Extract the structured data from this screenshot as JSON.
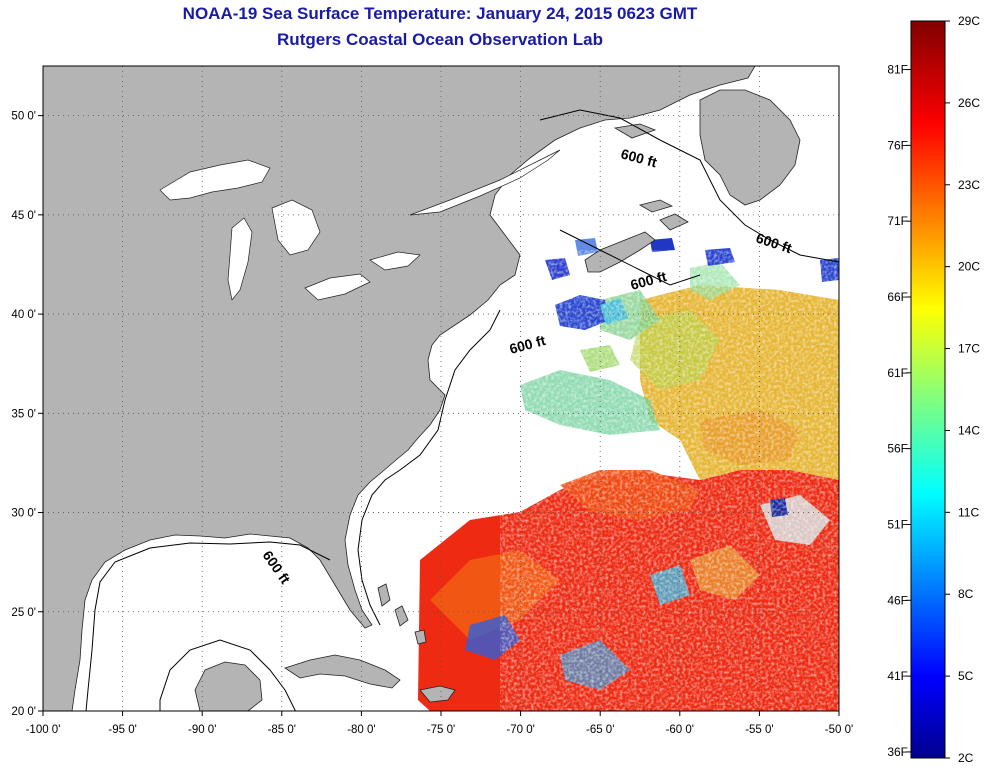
{
  "title": "NOAA-19 Sea Surface Temperature:  January 24, 2015 0623 GMT",
  "subtitle": "Rutgers Coastal Ocean Observation Lab",
  "contour_label": "600 ft",
  "colors": {
    "land": "#b4b4b4",
    "title": "#1a1aa8",
    "warm": "#ee2a12",
    "cool": "#3bb8e0",
    "mid": "#e6c030"
  },
  "chart_data": {
    "type": "heatmap",
    "xlim": [
      -100,
      -50
    ],
    "ylim": [
      20,
      52.5
    ],
    "x_ticks": [
      {
        "v": -100,
        "label": "-100 0'"
      },
      {
        "v": -95,
        "label": "-95 0'"
      },
      {
        "v": -90,
        "label": "-90 0'"
      },
      {
        "v": -85,
        "label": "-85 0'"
      },
      {
        "v": -80,
        "label": "-80 0'"
      },
      {
        "v": -75,
        "label": "-75 0'"
      },
      {
        "v": -70,
        "label": "-70 0'"
      },
      {
        "v": -65,
        "label": "-65 0'"
      },
      {
        "v": -60,
        "label": "-60 0'"
      },
      {
        "v": -55,
        "label": "-55 0'"
      },
      {
        "v": -50,
        "label": "-50 0'"
      }
    ],
    "y_ticks": [
      {
        "v": 20,
        "label": "20 0'"
      },
      {
        "v": 25,
        "label": "25 0'"
      },
      {
        "v": 30,
        "label": "30 0'"
      },
      {
        "v": 35,
        "label": "35 0'"
      },
      {
        "v": 40,
        "label": "40 0'"
      },
      {
        "v": 45,
        "label": "45 0'"
      },
      {
        "v": 50,
        "label": "50 0'"
      }
    ],
    "grid": true,
    "colorbar": {
      "min_c": 2,
      "max_c": 29,
      "celsius_labels": [
        "2C",
        "5C",
        "8C",
        "11C",
        "14C",
        "17C",
        "20C",
        "23C",
        "26C",
        "29C"
      ],
      "fahrenheit_labels": [
        "36F",
        "41F",
        "46F",
        "51F",
        "56F",
        "61F",
        "66F",
        "71F",
        "76F",
        "81F"
      ]
    }
  }
}
